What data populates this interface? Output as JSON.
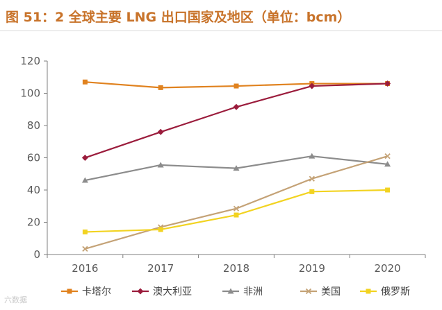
{
  "figure": {
    "title": "图 51：2 全球主要 LNG 出口国家及地区（单位：bcm）",
    "watermark": "六数据"
  },
  "colors": {
    "title": "#c8732a",
    "axis": "#7f7f7f",
    "tick_text": "#595959"
  },
  "chart_data": {
    "type": "line",
    "title": "2 全球主要 LNG 出口国家及地区（单位：bcm）",
    "xlabel": "",
    "ylabel": "",
    "categories": [
      "2016",
      "2017",
      "2018",
      "2019",
      "2020"
    ],
    "ylim": [
      0,
      120
    ],
    "yticks": [
      0,
      20,
      40,
      60,
      80,
      100,
      120
    ],
    "grid": false,
    "legend_position": "bottom",
    "series": [
      {
        "name": "卡塔尔",
        "color": "#e0821f",
        "marker": "square",
        "values": [
          107,
          103.5,
          104.5,
          106,
          106
        ]
      },
      {
        "name": "澳大利亚",
        "color": "#9b1c3c",
        "marker": "diamond",
        "values": [
          60,
          76,
          91.5,
          104.5,
          106
        ]
      },
      {
        "name": "非洲",
        "color": "#8c8c8c",
        "marker": "triangle",
        "values": [
          46,
          55.5,
          53.5,
          61,
          56
        ]
      },
      {
        "name": "美国",
        "color": "#c4a276",
        "marker": "x",
        "values": [
          3.5,
          17,
          28.5,
          47,
          61
        ]
      },
      {
        "name": "俄罗斯",
        "color": "#f2d321",
        "marker": "square",
        "values": [
          14,
          15.5,
          24.5,
          39,
          40
        ]
      }
    ]
  }
}
